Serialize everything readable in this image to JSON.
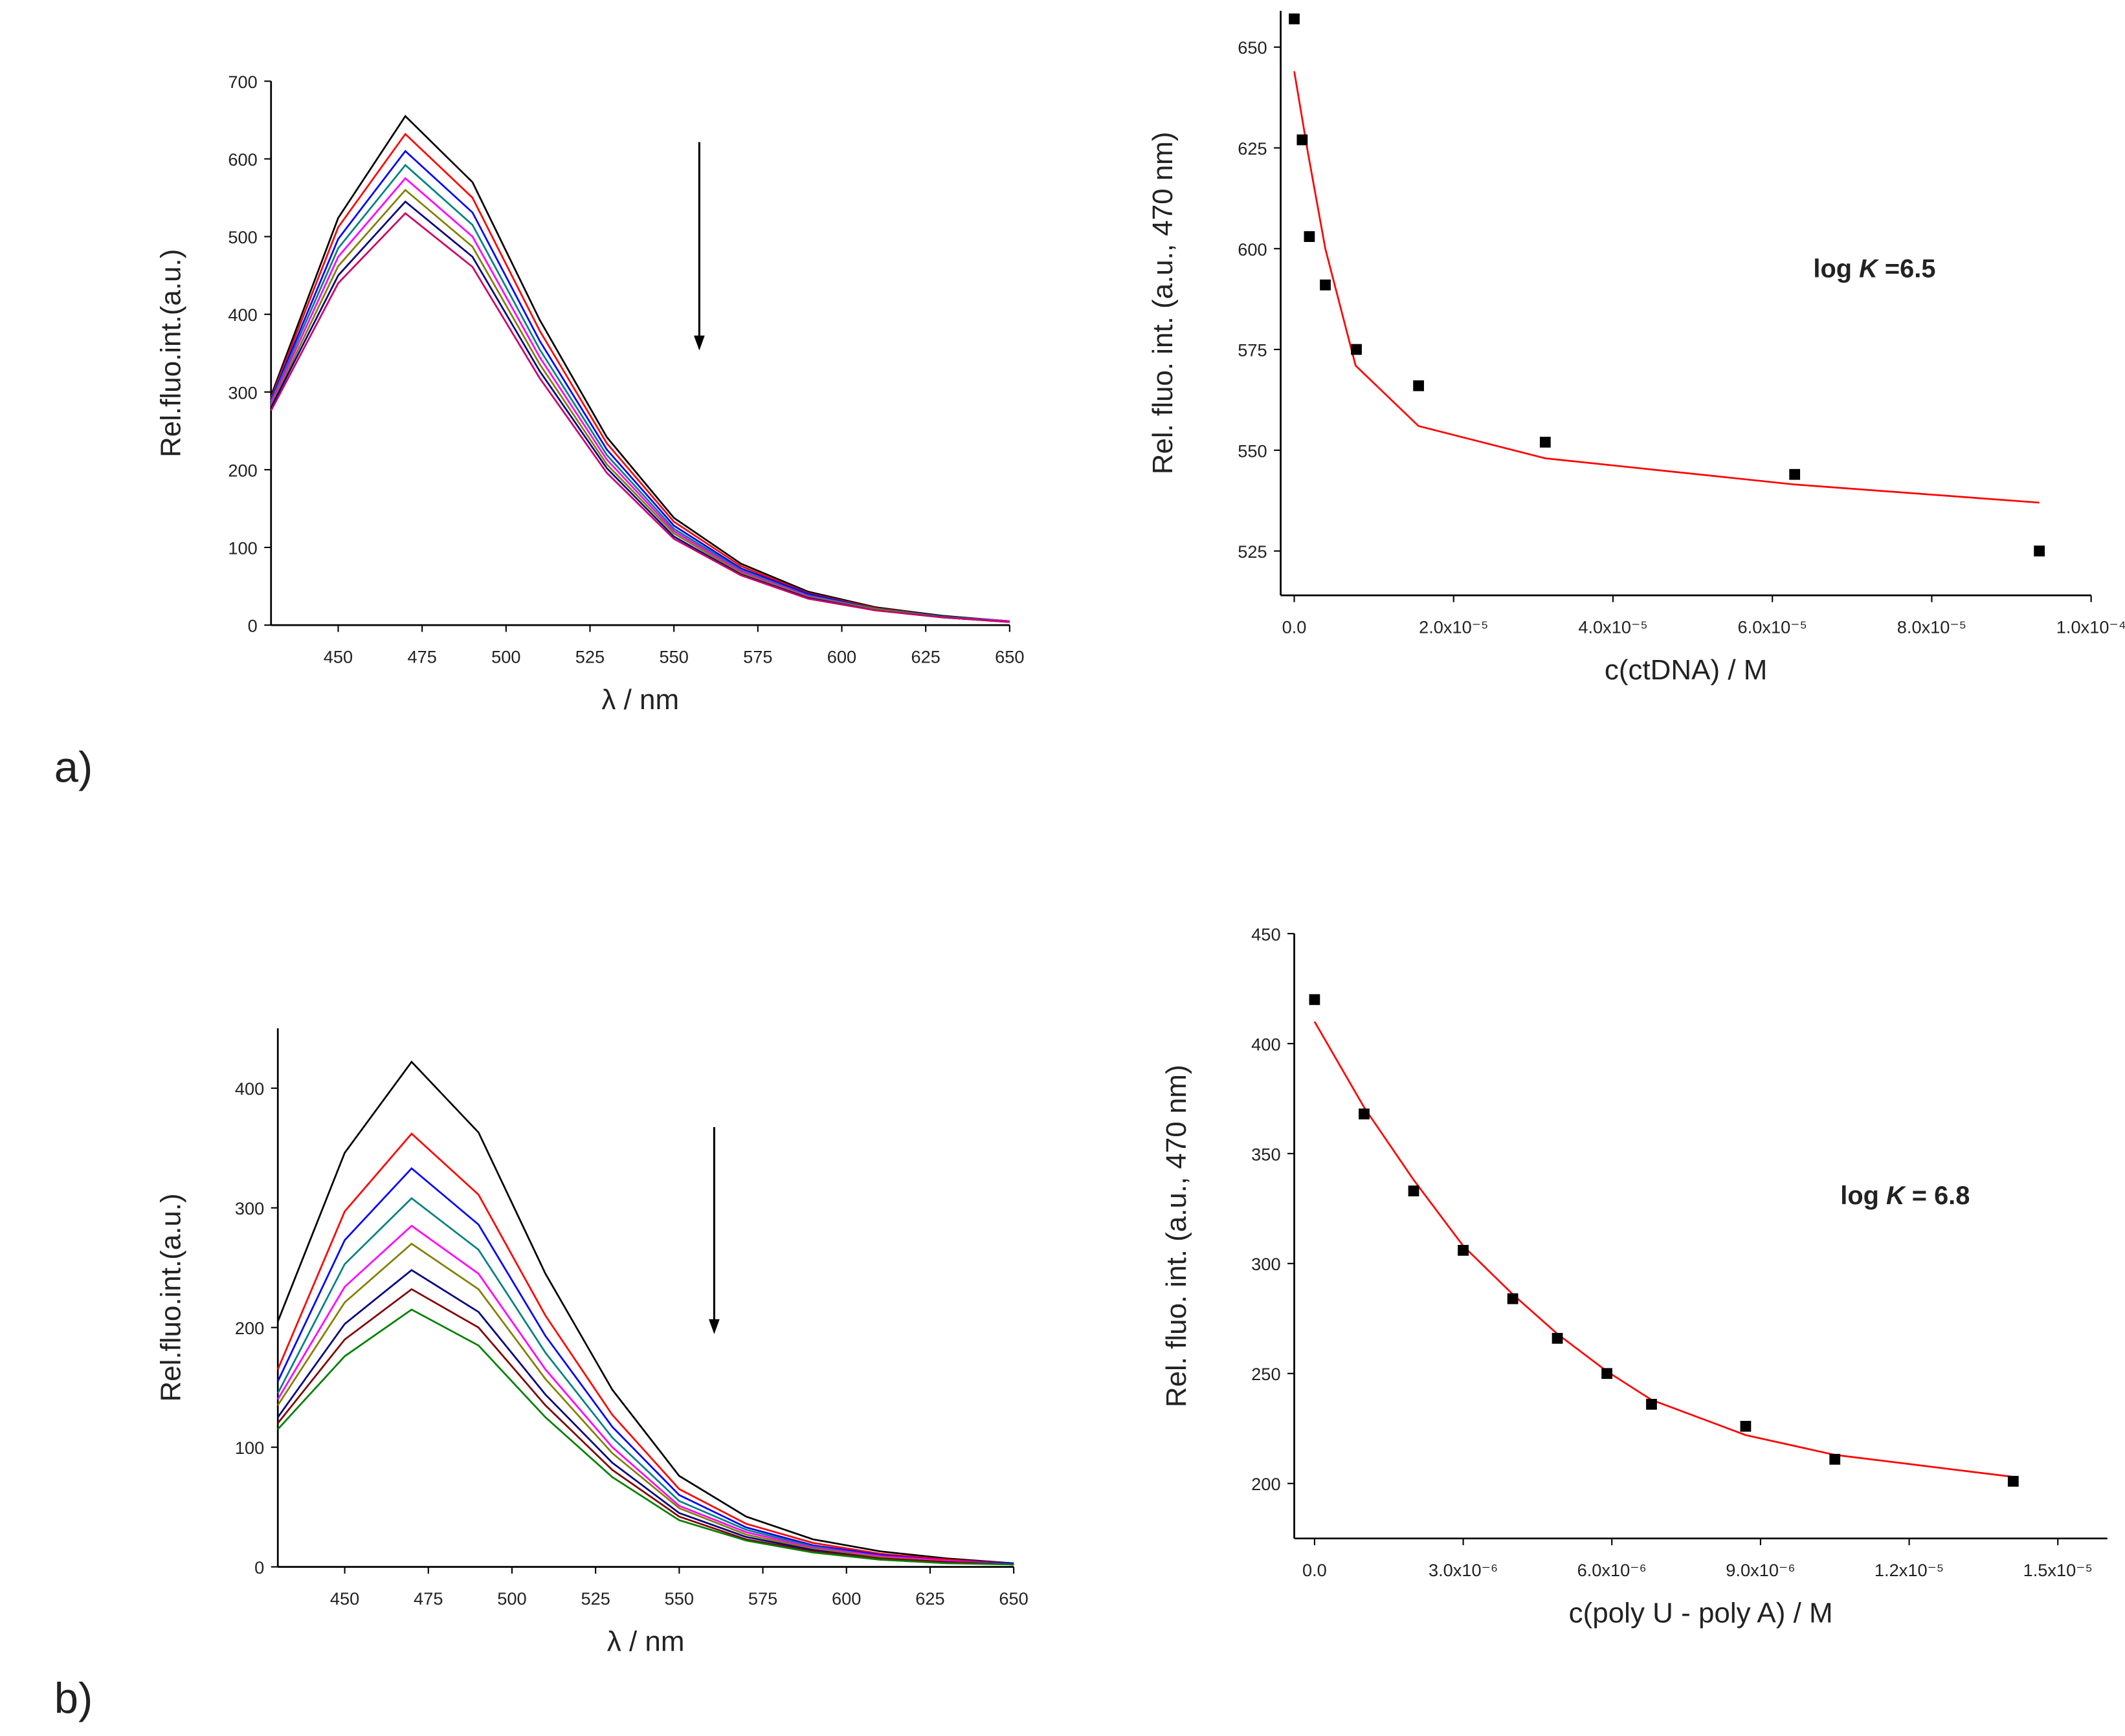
{
  "panel_labels": [
    "a)",
    "b)"
  ],
  "chart_data": [
    {
      "type": "line",
      "xlabel": "λ / nm",
      "ylabel": "Rel.fluo.int.(a.u.)",
      "xlim": [
        430,
        650
      ],
      "ylim": [
        0,
        700
      ],
      "xticks": [
        450,
        475,
        500,
        525,
        550,
        575,
        600,
        625,
        650
      ],
      "yticks": [
        0,
        100,
        200,
        300,
        400,
        500,
        600,
        700
      ],
      "x": [
        430,
        450,
        470,
        490,
        510,
        530,
        550,
        570,
        590,
        610,
        630,
        650
      ],
      "series": [
        {
          "color": "#000000",
          "values": [
            295,
            524,
            655,
            570,
            393,
            242,
            138,
            79,
            43,
            23,
            12,
            5
          ]
        },
        {
          "color": "#ff0000",
          "values": [
            292,
            512,
            632,
            550,
            379,
            234,
            133,
            76,
            41,
            22,
            11,
            5
          ]
        },
        {
          "color": "#0000ff",
          "values": [
            290,
            497,
            610,
            531,
            366,
            226,
            128,
            73,
            40,
            21,
            11,
            5
          ]
        },
        {
          "color": "#008080",
          "values": [
            288,
            485,
            592,
            515,
            355,
            219,
            124,
            71,
            38,
            21,
            11,
            5
          ]
        },
        {
          "color": "#ff00ff",
          "values": [
            285,
            474,
            575,
            500,
            345,
            213,
            121,
            69,
            37,
            20,
            10,
            5
          ]
        },
        {
          "color": "#808000",
          "values": [
            282,
            462,
            560,
            487,
            336,
            207,
            118,
            67,
            36,
            20,
            10,
            4
          ]
        },
        {
          "color": "#000080",
          "values": [
            280,
            450,
            545,
            474,
            327,
            202,
            114,
            65,
            35,
            19,
            10,
            4
          ]
        },
        {
          "color": "#cc0066",
          "values": [
            276,
            440,
            530,
            461,
            318,
            196,
            111,
            64,
            34,
            19,
            10,
            4
          ]
        }
      ]
    },
    {
      "type": "scatter",
      "xlabel": "c(ctDNA) / M",
      "ylabel": "Rel. fluo. int. (a.u., 470 nm)",
      "annotation": [
        "log ",
        "K",
        " =6.5"
      ],
      "xlim": [
        -1.7e-06,
        0.0001
      ],
      "ylim": [
        514,
        659
      ],
      "xticks": [
        {
          "value": 0,
          "label": "0.0"
        },
        {
          "value": 2e-05,
          "label": "2.0x10⁻⁵"
        },
        {
          "value": 4e-05,
          "label": "4.0x10⁻⁵"
        },
        {
          "value": 6e-05,
          "label": "6.0x10⁻⁵"
        },
        {
          "value": 8e-05,
          "label": "8.0x10⁻⁵"
        },
        {
          "value": 0.0001,
          "label": "1.0x10⁻⁴"
        }
      ],
      "yticks": [
        525,
        550,
        575,
        600,
        625,
        650
      ],
      "points": {
        "color": "#000000",
        "x": [
          0,
          1e-06,
          1.9e-06,
          3.9e-06,
          7.8e-06,
          1.56e-05,
          3.15e-05,
          6.28e-05,
          9.35e-05
        ],
        "y": [
          657,
          627,
          603,
          591,
          575,
          566,
          552,
          544,
          525
        ]
      },
      "fit": {
        "color": "#ff0000",
        "x": [
          0,
          1.7e-06,
          3.9e-06,
          7.7e-06,
          1.56e-05,
          3.15e-05,
          6.28e-05,
          9.35e-05
        ],
        "y": [
          644,
          624,
          600,
          571,
          556,
          548,
          541.5,
          537
        ]
      }
    },
    {
      "type": "line",
      "xlabel": "λ / nm",
      "ylabel": "Rel.fluo.int.(a.u.)",
      "xlim": [
        430,
        650
      ],
      "ylim": [
        0,
        450
      ],
      "xticks": [
        450,
        475,
        500,
        525,
        550,
        575,
        600,
        625,
        650
      ],
      "yticks": [
        0,
        100,
        200,
        300,
        400
      ],
      "x": [
        430,
        450,
        470,
        490,
        510,
        530,
        550,
        570,
        590,
        610,
        630,
        650
      ],
      "series": [
        {
          "color": "#000000",
          "values": [
            205,
            346,
            422,
            363,
            245,
            148,
            76,
            42,
            23,
            13,
            7,
            3
          ]
        },
        {
          "color": "#ff0000",
          "values": [
            165,
            297,
            362,
            311,
            210,
            127,
            65,
            36,
            20,
            11,
            6,
            3
          ]
        },
        {
          "color": "#0000ff",
          "values": [
            155,
            273,
            333,
            286,
            193,
            117,
            60,
            33,
            18,
            10,
            5,
            3
          ]
        },
        {
          "color": "#008080",
          "values": [
            145,
            253,
            308,
            265,
            179,
            108,
            55,
            31,
            17,
            9,
            5,
            2
          ]
        },
        {
          "color": "#ff00ff",
          "values": [
            140,
            234,
            285,
            245,
            165,
            100,
            51,
            29,
            16,
            9,
            5,
            2
          ]
        },
        {
          "color": "#808000",
          "values": [
            135,
            221,
            270,
            232,
            157,
            95,
            49,
            27,
            15,
            8,
            4,
            2
          ]
        },
        {
          "color": "#000080",
          "values": [
            125,
            203,
            248,
            213,
            144,
            87,
            45,
            25,
            14,
            7,
            4,
            2
          ]
        },
        {
          "color": "#800000",
          "values": [
            120,
            190,
            232,
            200,
            135,
            81,
            42,
            23,
            13,
            7,
            4,
            2
          ]
        },
        {
          "color": "#008000",
          "values": [
            115,
            176,
            215,
            185,
            125,
            75,
            39,
            22,
            12,
            6,
            3,
            2
          ]
        }
      ]
    },
    {
      "type": "scatter",
      "xlabel": "c(poly U - poly A) / M",
      "ylabel": "Rel. fluo. int. (a.u., 470 nm)",
      "annotation": [
        "log ",
        "K",
        " = 6.8"
      ],
      "xlim": [
        -4.1e-07,
        1.6e-05
      ],
      "ylim": [
        175,
        450
      ],
      "xticks": [
        {
          "value": 0,
          "label": "0.0"
        },
        {
          "value": 3e-06,
          "label": "3.0x10⁻⁶"
        },
        {
          "value": 6e-06,
          "label": "6.0x10⁻⁶"
        },
        {
          "value": 9e-06,
          "label": "9.0x10⁻⁶"
        },
        {
          "value": 1.2e-05,
          "label": "1.2x10⁻⁵"
        },
        {
          "value": 1.5e-05,
          "label": "1.5x10⁻⁵"
        }
      ],
      "yticks": [
        200,
        250,
        300,
        350,
        400,
        450
      ],
      "points": {
        "color": "#000000",
        "x": [
          0,
          1e-06,
          2e-06,
          3e-06,
          4e-06,
          4.9e-06,
          5.9e-06,
          6.8e-06,
          8.7e-06,
          1.05e-05,
          1.41e-05
        ],
        "y": [
          420,
          368,
          333,
          306,
          284,
          266,
          250,
          236,
          226,
          211,
          201
        ]
      },
      "fit": {
        "color": "#ff0000",
        "x": [
          0,
          1e-06,
          2e-06,
          3e-06,
          4e-06,
          4.9e-06,
          5.9e-06,
          6.8e-06,
          8.7e-06,
          1.05e-05,
          1.41e-05
        ],
        "y": [
          410,
          371,
          338,
          308,
          286,
          268,
          251,
          238,
          222,
          213,
          203
        ]
      }
    }
  ]
}
